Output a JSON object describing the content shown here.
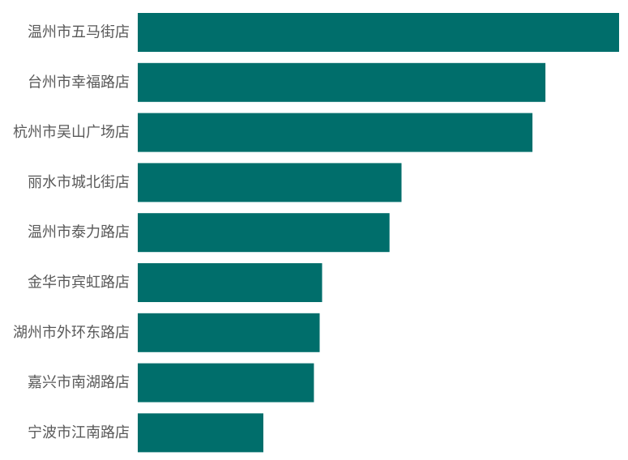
{
  "chart_data": {
    "type": "bar",
    "orientation": "horizontal",
    "categories": [
      "温州市五马街店",
      "台州市幸福路店",
      "杭州市吴山广场店",
      "丽水市城北街店",
      "温州市泰力路店",
      "金华市宾虹路店",
      "湖州市外环东路店",
      "嘉兴市南湖路店",
      "宁波市江南路店"
    ],
    "values": [
      100,
      84.7,
      82,
      54.8,
      52.3,
      38.3,
      37.8,
      36.6,
      26.1
    ],
    "title": "",
    "xlabel": "",
    "ylabel": "",
    "xlim": [
      0,
      100
    ],
    "grid": false,
    "legend": "none",
    "bar_color": "#006e6b",
    "label_color": "#595959"
  }
}
